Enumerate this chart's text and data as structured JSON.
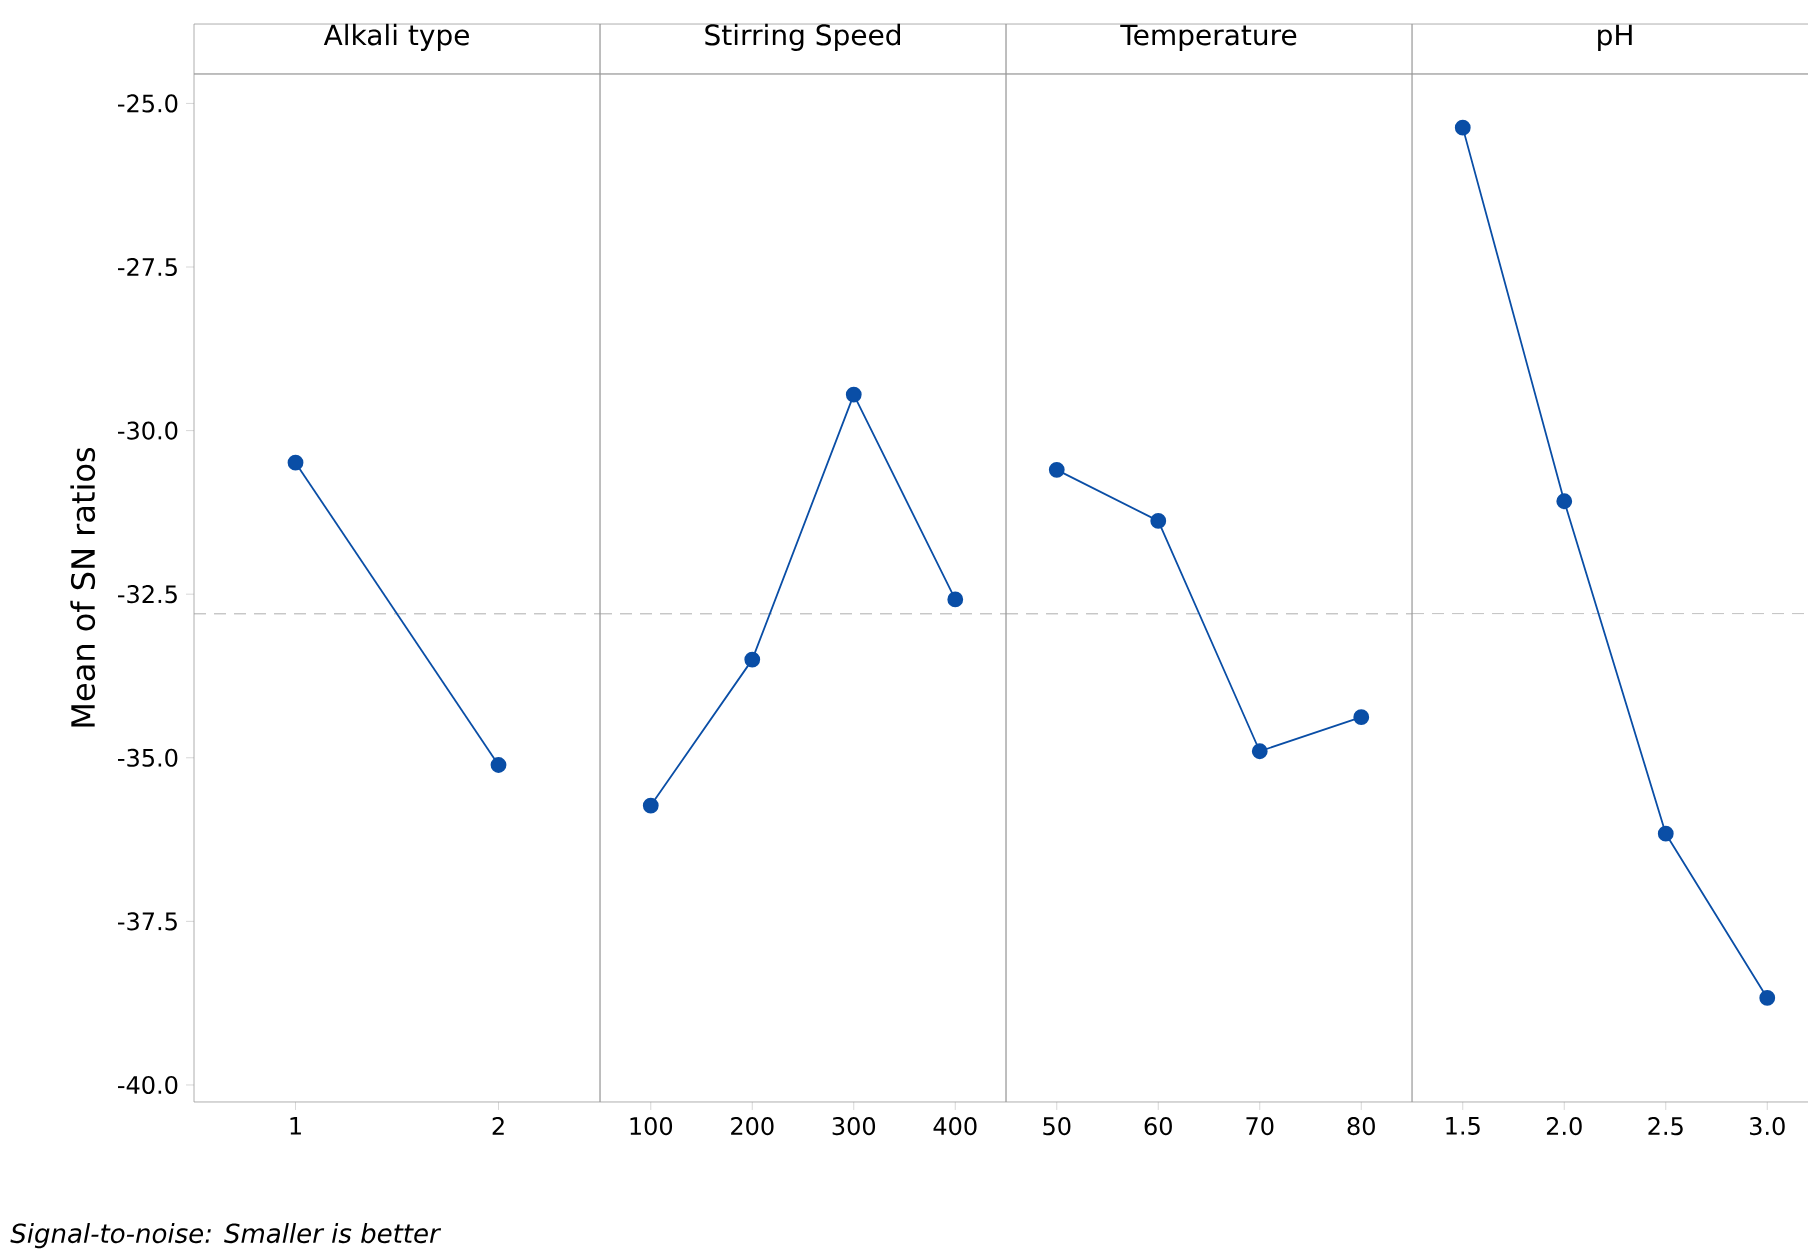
{
  "chart_data": [
    {
      "type": "line",
      "title": "Alkali type",
      "ylabel": "Mean of SN ratios",
      "categories": [
        "1",
        "2"
      ],
      "values": [
        -30.49,
        -35.11
      ],
      "color": "#0a4ea6",
      "marker": "circle",
      "line_style": "solid",
      "ylim": [
        -40.26,
        -24.55
      ],
      "yticks": [
        {
          "value": -25,
          "label": "-25.0"
        },
        {
          "value": -27.5,
          "label": "-27.5"
        },
        {
          "value": -30,
          "label": "-30.0"
        },
        {
          "value": -32.5,
          "label": "-32.5"
        },
        {
          "value": -35,
          "label": "-35.0"
        },
        {
          "value": -37.5,
          "label": "-37.5"
        },
        {
          "value": -40,
          "label": "-40.0"
        }
      ],
      "ref_lines": [
        {
          "axis": "y",
          "value": -32.8,
          "color": "#999999",
          "line_style": "dashed"
        }
      ],
      "annotations": [
        "Signal-to-noise: Smaller is better"
      ]
    },
    {
      "type": "line",
      "title": "Stirring Speed",
      "categories": [
        "100",
        "200",
        "300",
        "400"
      ],
      "values": [
        -35.73,
        -33.5,
        -29.45,
        -32.58
      ],
      "color": "#0a4ea6",
      "marker": "circle",
      "line_style": "solid",
      "ylim": [
        -40.26,
        -24.55
      ],
      "tick_labels": "x",
      "ref_lines": [
        {
          "axis": "y",
          "value": -32.8,
          "color": "#999999",
          "line_style": "dashed"
        }
      ]
    },
    {
      "type": "line",
      "title": "Temperature",
      "categories": [
        "50",
        "60",
        "70",
        "80"
      ],
      "values": [
        -30.6,
        -31.38,
        -34.9,
        -34.38
      ],
      "color": "#0a4ea6",
      "marker": "circle",
      "line_style": "solid",
      "ylim": [
        -40.26,
        -24.55
      ],
      "tick_labels": "x",
      "ref_lines": [
        {
          "axis": "y",
          "value": -32.8,
          "color": "#999999",
          "line_style": "dashed"
        }
      ]
    },
    {
      "type": "line",
      "title": "pH",
      "categories": [
        "1.5",
        "2.0",
        "2.5",
        "3.0"
      ],
      "values": [
        -25.37,
        -31.08,
        -36.16,
        -38.67
      ],
      "color": "#0a4ea6",
      "marker": "circle",
      "line_style": "solid",
      "ylim": [
        -40.26,
        -24.55
      ],
      "tick_labels": "x",
      "ref_lines": [
        {
          "axis": "y",
          "value": -32.8,
          "color": "#999999",
          "line_style": "dashed"
        }
      ]
    }
  ]
}
